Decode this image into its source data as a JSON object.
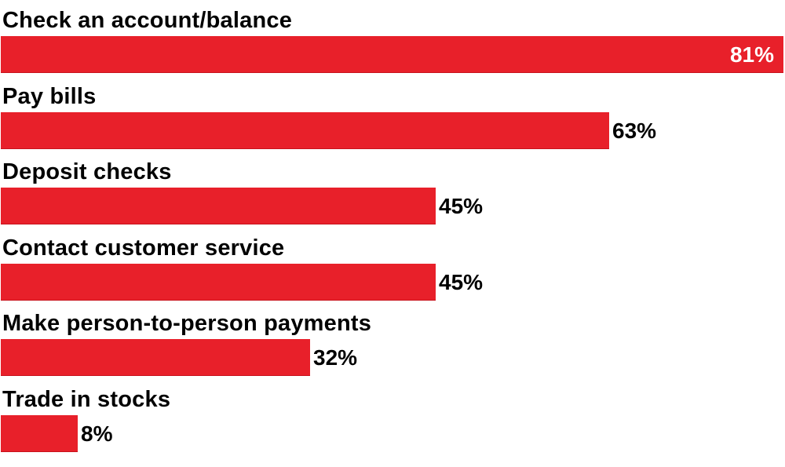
{
  "colors": {
    "bar": "#e8202a",
    "bar_edge": "#c8121c",
    "text": "#000000",
    "inside_label": "#ffffff"
  },
  "chart_data": {
    "type": "bar",
    "orientation": "horizontal",
    "categories": [
      "Check an account/balance",
      "Pay bills",
      "Deposit checks",
      "Contact customer service",
      "Make person-to-person payments",
      "Trade in stocks"
    ],
    "values": [
      81,
      63,
      45,
      45,
      32,
      8
    ],
    "value_labels": [
      "81%",
      "63%",
      "45%",
      "45%",
      "32%",
      "8%"
    ],
    "unit": "%",
    "xlim": [
      0,
      81
    ],
    "grid": false,
    "legend": "none",
    "title": "",
    "xlabel": "",
    "ylabel": ""
  }
}
